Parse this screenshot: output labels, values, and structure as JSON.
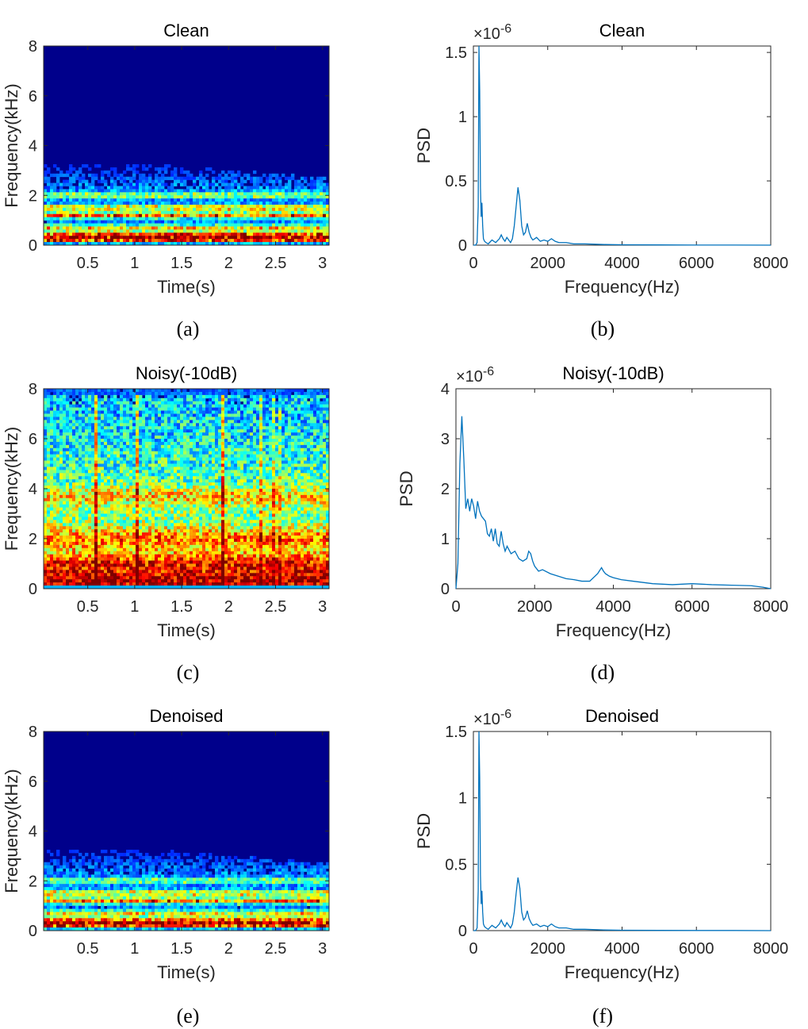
{
  "colors": {
    "line": "#0072BD",
    "axis": "#262626",
    "spec_background": "#00008B",
    "jet": [
      "#00007F",
      "#0000FF",
      "#007FFF",
      "#00FFFF",
      "#7FFF7F",
      "#FFFF00",
      "#FF7F00",
      "#FF0000",
      "#7F0000"
    ]
  },
  "chart_data": [
    {
      "id": "a",
      "type": "heatmap",
      "title": "Clean",
      "caption": "(a)",
      "xlabel": "Time(s)",
      "ylabel": "Frequency(kHz)",
      "xlim": [
        0.03,
        3.07
      ],
      "ylim": [
        0,
        8
      ],
      "xticks": [
        0.5,
        1,
        1.5,
        2,
        2.5,
        3
      ],
      "xtick_labels": [
        "0.5",
        "1",
        "1.5",
        "2",
        "2.5",
        "3"
      ],
      "yticks": [
        0,
        2,
        4,
        6,
        8
      ],
      "ytick_labels": [
        "0",
        "2",
        "4",
        "6",
        "8"
      ],
      "energy_profile": {
        "max_freq_khz": 3.6,
        "bands_khz": [
          {
            "f": 0.25,
            "level": 0.85
          },
          {
            "f": 0.45,
            "level": 0.55
          },
          {
            "f": 0.7,
            "level": 0.45
          },
          {
            "f": 1.2,
            "level": 0.6
          },
          {
            "f": 1.5,
            "level": 0.5
          },
          {
            "f": 2.0,
            "level": 0.35
          }
        ]
      }
    },
    {
      "id": "b",
      "type": "line",
      "title": "Clean",
      "caption": "(b)",
      "xlabel": "Frequency(Hz)",
      "ylabel": "PSD",
      "y_exponent": "×10^-6",
      "xlim": [
        0,
        8000
      ],
      "ylim": [
        0,
        1.55
      ],
      "xticks": [
        0,
        2000,
        4000,
        6000,
        8000
      ],
      "xtick_labels": [
        "0",
        "2000",
        "4000",
        "6000",
        "8000"
      ],
      "yticks": [
        0,
        0.5,
        1,
        1.5
      ],
      "ytick_labels": [
        "0",
        "0.5",
        "1",
        "1.5"
      ],
      "x": [
        0,
        60,
        100,
        130,
        150,
        170,
        190,
        210,
        230,
        250,
        270,
        300,
        340,
        400,
        500,
        600,
        700,
        750,
        800,
        850,
        900,
        950,
        1000,
        1050,
        1100,
        1150,
        1200,
        1250,
        1300,
        1350,
        1400,
        1450,
        1500,
        1550,
        1600,
        1700,
        1800,
        1900,
        2000,
        2100,
        2200,
        2300,
        2500,
        2700,
        3000,
        3500,
        4000,
        5000,
        6000,
        7000,
        8000
      ],
      "y": [
        0,
        0,
        0.02,
        0.3,
        1.55,
        1.2,
        0.45,
        0.22,
        0.33,
        0.15,
        0.05,
        0.03,
        0.02,
        0.01,
        0.04,
        0.02,
        0.05,
        0.08,
        0.05,
        0.03,
        0.06,
        0.04,
        0.02,
        0.05,
        0.15,
        0.3,
        0.45,
        0.35,
        0.15,
        0.08,
        0.1,
        0.17,
        0.1,
        0.06,
        0.04,
        0.06,
        0.03,
        0.04,
        0.03,
        0.05,
        0.03,
        0.02,
        0.02,
        0.01,
        0.01,
        0.005,
        0.003,
        0.002,
        0.001,
        0.001,
        0
      ]
    },
    {
      "id": "c",
      "type": "heatmap",
      "title": "Noisy(-10dB)",
      "caption": "(c)",
      "xlabel": "Time(s)",
      "ylabel": "Frequency(kHz)",
      "xlim": [
        0.03,
        3.07
      ],
      "ylim": [
        0,
        8
      ],
      "xticks": [
        0.5,
        1,
        1.5,
        2,
        2.5,
        3
      ],
      "xtick_labels": [
        "0.5",
        "1",
        "1.5",
        "2",
        "2.5",
        "3"
      ],
      "yticks": [
        0,
        2,
        4,
        6,
        8
      ],
      "ytick_labels": [
        "0",
        "2",
        "4",
        "6",
        "8"
      ],
      "energy_profile": {
        "max_freq_khz": 8,
        "bands_khz": [
          {
            "f": 0.3,
            "level": 0.95
          },
          {
            "f": 1.0,
            "level": 0.8
          },
          {
            "f": 2.0,
            "level": 0.65
          },
          {
            "f": 3.7,
            "level": 0.55
          }
        ]
      }
    },
    {
      "id": "d",
      "type": "line",
      "title": "Noisy(-10dB)",
      "caption": "(d)",
      "xlabel": "Frequency(Hz)",
      "ylabel": "PSD",
      "y_exponent": "×10^-6",
      "xlim": [
        0,
        8000
      ],
      "ylim": [
        0,
        4
      ],
      "xticks": [
        0,
        2000,
        4000,
        6000,
        8000
      ],
      "xtick_labels": [
        "0",
        "2000",
        "4000",
        "6000",
        "8000"
      ],
      "yticks": [
        0,
        1,
        2,
        3,
        4
      ],
      "ytick_labels": [
        "0",
        "1",
        "2",
        "3",
        "4"
      ],
      "x": [
        0,
        50,
        100,
        150,
        200,
        250,
        300,
        350,
        400,
        450,
        500,
        550,
        600,
        650,
        700,
        750,
        800,
        850,
        900,
        950,
        1000,
        1050,
        1100,
        1150,
        1200,
        1250,
        1300,
        1400,
        1500,
        1600,
        1700,
        1800,
        1850,
        1900,
        1950,
        2000,
        2100,
        2200,
        2400,
        2600,
        2800,
        3000,
        3200,
        3400,
        3600,
        3700,
        3750,
        3800,
        3900,
        4000,
        4200,
        4500,
        5000,
        5500,
        6000,
        6500,
        7000,
        7500,
        7800,
        8000
      ],
      "y": [
        0,
        0.5,
        2.5,
        3.45,
        2.6,
        1.6,
        1.8,
        1.55,
        1.8,
        1.65,
        1.4,
        1.75,
        1.55,
        1.45,
        1.4,
        1.35,
        1.1,
        1.05,
        1.2,
        0.95,
        1.2,
        0.9,
        0.85,
        1.15,
        0.9,
        0.75,
        0.85,
        0.7,
        0.75,
        0.6,
        0.55,
        0.6,
        0.75,
        0.7,
        0.55,
        0.45,
        0.35,
        0.38,
        0.3,
        0.25,
        0.2,
        0.18,
        0.15,
        0.15,
        0.3,
        0.42,
        0.35,
        0.3,
        0.25,
        0.22,
        0.18,
        0.15,
        0.1,
        0.08,
        0.1,
        0.08,
        0.07,
        0.06,
        0.03,
        0
      ]
    },
    {
      "id": "e",
      "type": "heatmap",
      "title": "Denoised",
      "caption": "(e)",
      "xlabel": "Time(s)",
      "ylabel": "Frequency(kHz)",
      "xlim": [
        0.03,
        3.07
      ],
      "ylim": [
        0,
        8
      ],
      "xticks": [
        0.5,
        1,
        1.5,
        2,
        2.5,
        3
      ],
      "xtick_labels": [
        "0.5",
        "1",
        "1.5",
        "2",
        "2.5",
        "3"
      ],
      "yticks": [
        0,
        2,
        4,
        6,
        8
      ],
      "ytick_labels": [
        "0",
        "2",
        "4",
        "6",
        "8"
      ],
      "energy_profile": {
        "max_freq_khz": 3.6,
        "bands_khz": [
          {
            "f": 0.25,
            "level": 0.85
          },
          {
            "f": 0.45,
            "level": 0.5
          },
          {
            "f": 0.7,
            "level": 0.4
          },
          {
            "f": 1.2,
            "level": 0.6
          },
          {
            "f": 1.5,
            "level": 0.45
          },
          {
            "f": 2.0,
            "level": 0.3
          }
        ]
      }
    },
    {
      "id": "f",
      "type": "line",
      "title": "Denoised",
      "caption": "(f)",
      "xlabel": "Frequency(Hz)",
      "ylabel": "PSD",
      "y_exponent": "×10^-6",
      "xlim": [
        0,
        8000
      ],
      "ylim": [
        0,
        1.5
      ],
      "xticks": [
        0,
        2000,
        4000,
        6000,
        8000
      ],
      "xtick_labels": [
        "0",
        "2000",
        "4000",
        "6000",
        "8000"
      ],
      "yticks": [
        0,
        0.5,
        1,
        1.5
      ],
      "ytick_labels": [
        "0",
        "0.5",
        "1",
        "1.5"
      ],
      "x": [
        0,
        60,
        100,
        130,
        150,
        170,
        190,
        210,
        230,
        250,
        270,
        300,
        340,
        400,
        500,
        600,
        700,
        750,
        800,
        850,
        900,
        950,
        1000,
        1050,
        1100,
        1150,
        1200,
        1250,
        1300,
        1350,
        1400,
        1450,
        1500,
        1550,
        1600,
        1700,
        1800,
        1900,
        2000,
        2100,
        2200,
        2300,
        2500,
        2700,
        3000,
        3500,
        4000,
        5000,
        6000,
        7000,
        8000
      ],
      "y": [
        0,
        0,
        0.02,
        0.3,
        1.5,
        1.15,
        0.42,
        0.2,
        0.3,
        0.14,
        0.05,
        0.03,
        0.02,
        0.01,
        0.04,
        0.02,
        0.05,
        0.08,
        0.05,
        0.03,
        0.06,
        0.04,
        0.02,
        0.05,
        0.14,
        0.28,
        0.4,
        0.32,
        0.14,
        0.08,
        0.1,
        0.15,
        0.09,
        0.06,
        0.04,
        0.05,
        0.03,
        0.04,
        0.03,
        0.05,
        0.03,
        0.02,
        0.02,
        0.01,
        0.01,
        0.005,
        0.003,
        0.002,
        0.001,
        0.001,
        0
      ]
    }
  ]
}
